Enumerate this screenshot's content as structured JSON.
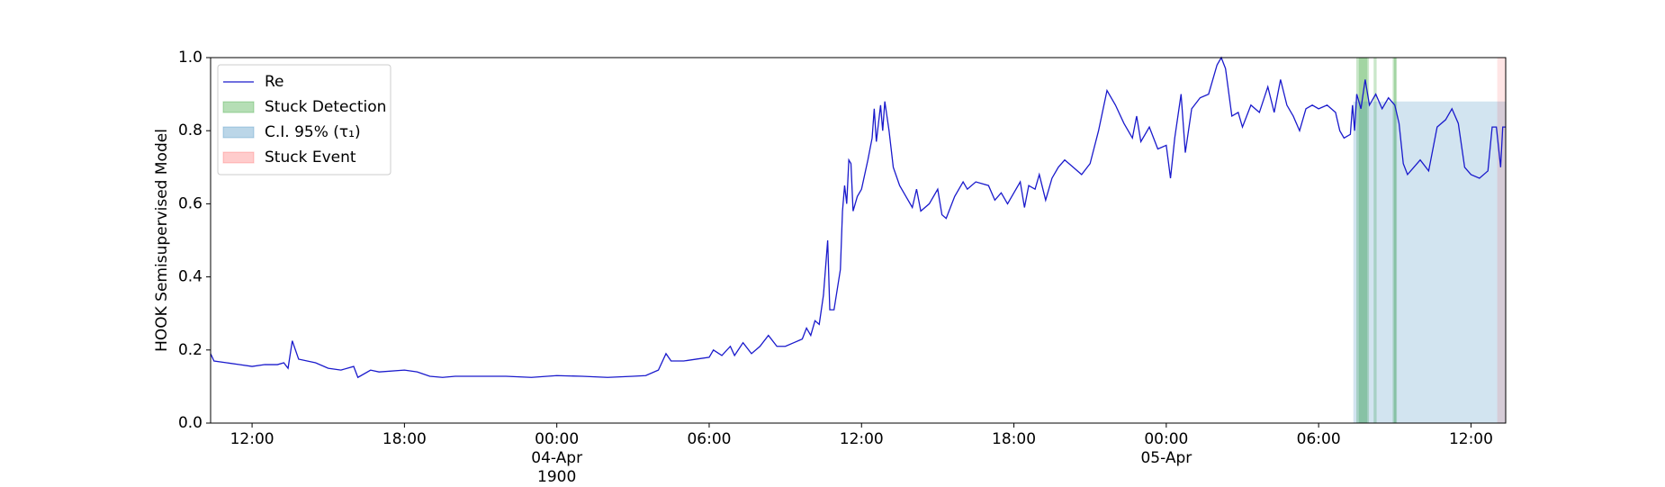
{
  "chart_data": {
    "type": "line",
    "ylabel": "HOOK Semisupervised Model",
    "xlim": [
      "1900-04-03T10:22",
      "1900-04-05T13:22"
    ],
    "ylim": [
      0,
      1
    ],
    "yticks": [
      {
        "value": 0,
        "label": "0.0"
      },
      {
        "value": 0.2,
        "label": "0.2"
      },
      {
        "value": 0.4,
        "label": "0.4"
      },
      {
        "value": 0.6,
        "label": "0.6"
      },
      {
        "value": 0.8,
        "label": "0.8"
      },
      {
        "value": 1,
        "label": "1.0"
      }
    ],
    "xticks": [
      {
        "value": "1900-04-03T12:00",
        "label": "12:00"
      },
      {
        "value": "1900-04-03T18:00",
        "label": "18:00"
      },
      {
        "value": "1900-04-04T00:00",
        "label": "00:00\n04-Apr\n1900"
      },
      {
        "value": "1900-04-04T06:00",
        "label": "06:00"
      },
      {
        "value": "1900-04-04T12:00",
        "label": "12:00"
      },
      {
        "value": "1900-04-04T18:00",
        "label": "18:00"
      },
      {
        "value": "1900-04-05T00:00",
        "label": "00:00\n05-Apr"
      },
      {
        "value": "1900-04-05T06:00",
        "label": "06:00"
      },
      {
        "value": "1900-04-05T12:00",
        "label": "12:00"
      }
    ],
    "legend": "upper left",
    "series": [
      {
        "name": "Re",
        "color": "#1a1acc",
        "x": [
          "1900-04-03T10:22",
          "1900-04-03T10:30",
          "1900-04-03T11:00",
          "1900-04-03T11:30",
          "1900-04-03T12:00",
          "1900-04-03T12:30",
          "1900-04-03T13:00",
          "1900-04-03T13:15",
          "1900-04-03T13:25",
          "1900-04-03T13:35",
          "1900-04-03T13:50",
          "1900-04-03T14:30",
          "1900-04-03T15:00",
          "1900-04-03T15:30",
          "1900-04-03T16:00",
          "1900-04-03T16:10",
          "1900-04-03T16:40",
          "1900-04-03T17:00",
          "1900-04-03T18:00",
          "1900-04-03T18:30",
          "1900-04-03T19:00",
          "1900-04-03T19:30",
          "1900-04-03T20:00",
          "1900-04-03T21:00",
          "1900-04-03T22:00",
          "1900-04-03T23:00",
          "1900-04-04T00:00",
          "1900-04-04T01:00",
          "1900-04-04T02:00",
          "1900-04-04T03:00",
          "1900-04-04T03:30",
          "1900-04-04T04:00",
          "1900-04-04T04:18",
          "1900-04-04T04:30",
          "1900-04-04T05:00",
          "1900-04-04T05:30",
          "1900-04-04T06:00",
          "1900-04-04T06:10",
          "1900-04-04T06:30",
          "1900-04-04T06:50",
          "1900-04-04T07:00",
          "1900-04-04T07:20",
          "1900-04-04T07:40",
          "1900-04-04T08:00",
          "1900-04-04T08:20",
          "1900-04-04T08:40",
          "1900-04-04T09:00",
          "1900-04-04T09:20",
          "1900-04-04T09:40",
          "1900-04-04T09:50",
          "1900-04-04T10:00",
          "1900-04-04T10:10",
          "1900-04-04T10:20",
          "1900-04-04T10:30",
          "1900-04-04T10:40",
          "1900-04-04T10:45",
          "1900-04-04T10:55",
          "1900-04-04T11:10",
          "1900-04-04T11:15",
          "1900-04-04T11:20",
          "1900-04-04T11:25",
          "1900-04-04T11:30",
          "1900-04-04T11:35",
          "1900-04-04T11:40",
          "1900-04-04T11:50",
          "1900-04-04T12:00",
          "1900-04-04T12:15",
          "1900-04-04T12:25",
          "1900-04-04T12:30",
          "1900-04-04T12:35",
          "1900-04-04T12:45",
          "1900-04-04T12:50",
          "1900-04-04T12:55",
          "1900-04-04T13:05",
          "1900-04-04T13:15",
          "1900-04-04T13:30",
          "1900-04-04T13:45",
          "1900-04-04T14:00",
          "1900-04-04T14:10",
          "1900-04-04T14:20",
          "1900-04-04T14:40",
          "1900-04-04T15:00",
          "1900-04-04T15:10",
          "1900-04-04T15:20",
          "1900-04-04T15:40",
          "1900-04-04T16:00",
          "1900-04-04T16:10",
          "1900-04-04T16:30",
          "1900-04-04T17:00",
          "1900-04-04T17:15",
          "1900-04-04T17:30",
          "1900-04-04T17:45",
          "1900-04-04T18:00",
          "1900-04-04T18:15",
          "1900-04-04T18:25",
          "1900-04-04T18:35",
          "1900-04-04T18:50",
          "1900-04-04T19:00",
          "1900-04-04T19:15",
          "1900-04-04T19:30",
          "1900-04-04T19:45",
          "1900-04-04T20:00",
          "1900-04-04T20:20",
          "1900-04-04T20:40",
          "1900-04-04T21:00",
          "1900-04-04T21:20",
          "1900-04-04T21:40",
          "1900-04-04T22:00",
          "1900-04-04T22:20",
          "1900-04-04T22:40",
          "1900-04-04T22:50",
          "1900-04-04T23:00",
          "1900-04-04T23:20",
          "1900-04-04T23:40",
          "1900-04-05T00:00",
          "1900-04-05T00:10",
          "1900-04-05T00:20",
          "1900-04-05T00:35",
          "1900-04-05T00:45",
          "1900-04-05T01:00",
          "1900-04-05T01:20",
          "1900-04-05T01:40",
          "1900-04-05T02:00",
          "1900-04-05T02:10",
          "1900-04-05T02:20",
          "1900-04-05T02:35",
          "1900-04-05T02:50",
          "1900-04-05T03:00",
          "1900-04-05T03:20",
          "1900-04-05T03:40",
          "1900-04-05T04:00",
          "1900-04-05T04:15",
          "1900-04-05T04:30",
          "1900-04-05T04:45",
          "1900-04-05T05:00",
          "1900-04-05T05:15",
          "1900-04-05T05:30",
          "1900-04-05T05:45",
          "1900-04-05T06:00",
          "1900-04-05T06:20",
          "1900-04-05T06:40",
          "1900-04-05T06:50",
          "1900-04-05T07:00",
          "1900-04-05T07:15",
          "1900-04-05T07:20",
          "1900-04-05T07:25",
          "1900-04-05T07:30",
          "1900-04-05T07:40",
          "1900-04-05T07:50",
          "1900-04-05T08:00",
          "1900-04-05T08:15",
          "1900-04-05T08:30",
          "1900-04-05T08:45",
          "1900-04-05T09:00",
          "1900-04-05T09:10",
          "1900-04-05T09:20",
          "1900-04-05T09:30",
          "1900-04-05T09:45",
          "1900-04-05T10:00",
          "1900-04-05T10:20",
          "1900-04-05T10:40",
          "1900-04-05T11:00",
          "1900-04-05T11:15",
          "1900-04-05T11:30",
          "1900-04-05T11:45",
          "1900-04-05T12:00",
          "1900-04-05T12:20",
          "1900-04-05T12:40",
          "1900-04-05T12:50",
          "1900-04-05T13:00",
          "1900-04-05T13:10",
          "1900-04-05T13:15",
          "1900-04-05T13:22"
        ],
        "values": [
          0.19,
          0.17,
          0.165,
          0.16,
          0.155,
          0.16,
          0.16,
          0.165,
          0.15,
          0.225,
          0.175,
          0.165,
          0.15,
          0.145,
          0.155,
          0.125,
          0.145,
          0.14,
          0.145,
          0.14,
          0.128,
          0.125,
          0.128,
          0.128,
          0.128,
          0.125,
          0.13,
          0.128,
          0.125,
          0.128,
          0.13,
          0.145,
          0.19,
          0.17,
          0.17,
          0.175,
          0.18,
          0.2,
          0.185,
          0.21,
          0.185,
          0.22,
          0.19,
          0.21,
          0.24,
          0.21,
          0.21,
          0.22,
          0.23,
          0.26,
          0.24,
          0.28,
          0.27,
          0.35,
          0.5,
          0.31,
          0.31,
          0.42,
          0.58,
          0.65,
          0.6,
          0.72,
          0.71,
          0.58,
          0.62,
          0.64,
          0.72,
          0.78,
          0.86,
          0.77,
          0.87,
          0.8,
          0.88,
          0.8,
          0.7,
          0.65,
          0.62,
          0.59,
          0.64,
          0.58,
          0.6,
          0.64,
          0.57,
          0.56,
          0.62,
          0.66,
          0.64,
          0.66,
          0.65,
          0.61,
          0.63,
          0.6,
          0.63,
          0.66,
          0.59,
          0.65,
          0.64,
          0.68,
          0.61,
          0.67,
          0.7,
          0.72,
          0.7,
          0.68,
          0.71,
          0.8,
          0.91,
          0.87,
          0.82,
          0.78,
          0.84,
          0.77,
          0.81,
          0.75,
          0.76,
          0.67,
          0.78,
          0.9,
          0.74,
          0.86,
          0.89,
          0.9,
          0.98,
          1.0,
          0.97,
          0.84,
          0.85,
          0.81,
          0.87,
          0.85,
          0.92,
          0.85,
          0.94,
          0.87,
          0.84,
          0.8,
          0.86,
          0.87,
          0.86,
          0.87,
          0.85,
          0.8,
          0.78,
          0.79,
          0.87,
          0.8,
          0.9,
          0.86,
          0.94,
          0.87,
          0.9,
          0.86,
          0.89,
          0.87,
          0.82,
          0.71,
          0.68,
          0.7,
          0.72,
          0.69,
          0.81,
          0.83,
          0.86,
          0.82,
          0.7,
          0.68,
          0.67,
          0.69,
          0.81,
          0.81,
          0.7,
          0.81,
          0.81
        ]
      }
    ],
    "spans": [
      {
        "name": "Stuck Detection",
        "color": "#2ca02c",
        "alpha": 0.25,
        "ranges": [
          [
            "1900-04-05T07:29",
            "1900-04-05T07:59"
          ],
          [
            "1900-04-05T07:35",
            "1900-04-05T07:55"
          ],
          [
            "1900-04-05T08:10",
            "1900-04-05T08:17"
          ],
          [
            "1900-04-05T08:55",
            "1900-04-05T09:05"
          ],
          [
            "1900-04-05T08:58",
            "1900-04-05T09:03"
          ]
        ]
      },
      {
        "name": "C.I. 95% (τ₁)",
        "color": "#1f77b4",
        "alpha": 0.2,
        "ranges": [
          [
            "1900-04-05T07:22",
            "1900-04-05T13:22"
          ]
        ],
        "ylim": [
          0,
          0.88
        ]
      },
      {
        "name": "Stuck Event",
        "color": "#ff0000",
        "alpha": 0.1,
        "ranges": [
          [
            "1900-04-05T13:02",
            "1900-04-05T13:22"
          ]
        ]
      }
    ]
  }
}
